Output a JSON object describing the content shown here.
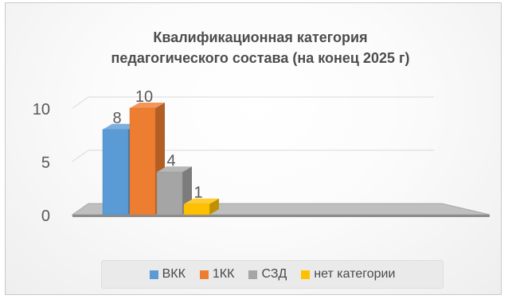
{
  "chart_data": {
    "type": "bar",
    "title": "Квалификационная категория педагогического состава (на конец 2025 г)",
    "title_lines": [
      "Квалификационная категория",
      "педагогического состава (на конец 2025 г)"
    ],
    "categories": [
      "ВКК",
      "1КК",
      "СЗД",
      "нет категории"
    ],
    "values": [
      8,
      10,
      4,
      1
    ],
    "data_labels": [
      "8",
      "10",
      "4",
      "1"
    ],
    "y_ticks": [
      "0",
      "5",
      "10"
    ],
    "ylim": [
      0,
      10
    ],
    "grid": true,
    "legend_position": "bottom",
    "style": "3d-column",
    "colors": {
      "ВКК": "#5b9bd5",
      "1КК": "#ed7d31",
      "СЗД": "#a5a5a5",
      "нет категории": "#ffc000"
    }
  }
}
